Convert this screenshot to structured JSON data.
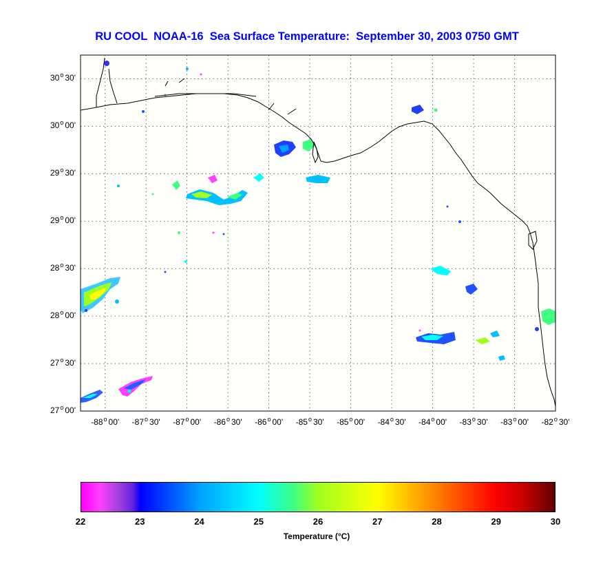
{
  "title": "RU COOL  NOAA-16  Sea Surface Temperature:  September 30, 2003 0750 GMT",
  "map": {
    "lat_range": [
      27.0,
      30.75
    ],
    "lon_range": [
      -88.3,
      -82.5
    ],
    "y_ticks": [
      {
        "deg": "30",
        "min": "30'"
      },
      {
        "deg": "30",
        "min": "00'"
      },
      {
        "deg": "29",
        "min": "30'"
      },
      {
        "deg": "29",
        "min": "00'"
      },
      {
        "deg": "28",
        "min": "30'"
      },
      {
        "deg": "28",
        "min": "00'"
      },
      {
        "deg": "27",
        "min": "30'"
      },
      {
        "deg": "27",
        "min": "00'"
      }
    ],
    "x_ticks": [
      {
        "deg": "-88",
        "min": "00'"
      },
      {
        "deg": "-87",
        "min": "30'"
      },
      {
        "deg": "-87",
        "min": "00'"
      },
      {
        "deg": "-86",
        "min": "30'"
      },
      {
        "deg": "-86",
        "min": "00'"
      },
      {
        "deg": "-85",
        "min": "30'"
      },
      {
        "deg": "-85",
        "min": "00'"
      },
      {
        "deg": "-84",
        "min": "30'"
      },
      {
        "deg": "-84",
        "min": "00'"
      },
      {
        "deg": "-83",
        "min": "30'"
      },
      {
        "deg": "-83",
        "min": "00'"
      },
      {
        "deg": "-82",
        "min": "30'"
      }
    ]
  },
  "colorbar": {
    "ticks": [
      "22",
      "23",
      "24",
      "25",
      "26",
      "27",
      "28",
      "29",
      "30"
    ],
    "min": 22,
    "max": 30,
    "label": "Temperature (°C)"
  },
  "colors": {
    "title": "#0000ff",
    "land_bg": "#fffffb",
    "coast": "#000000",
    "grid": "#444444"
  }
}
